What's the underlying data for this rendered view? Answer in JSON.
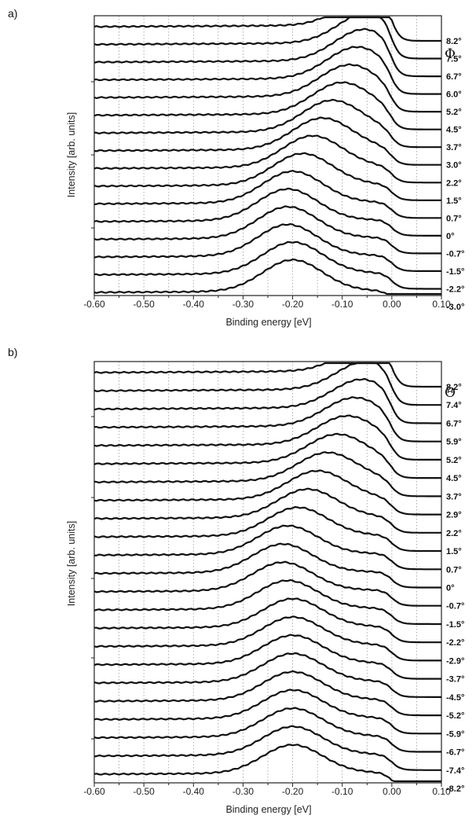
{
  "chart_data": [
    {
      "panel_label": "a)",
      "type": "line",
      "xlabel": "Binding energy [eV]",
      "ylabel": "Intensity [arb. units]",
      "xlim": [
        -0.6,
        0.1
      ],
      "xticks": [
        "-0.60",
        "-0.50",
        "-0.40",
        "-0.30",
        "-0.20",
        "-0.10",
        "0.00",
        "0.10"
      ],
      "grid": "vertical dotted every 0.05 eV",
      "legend_symbol": "Φ",
      "series": [
        {
          "name": "8.2°",
          "peak_x": -0.04
        },
        {
          "name": "7.5°",
          "peak_x": -0.045
        },
        {
          "name": "6.7°",
          "peak_x": -0.055
        },
        {
          "name": "6.0°",
          "peak_x": -0.07
        },
        {
          "name": "5.2°",
          "peak_x": -0.085
        },
        {
          "name": "4.5°",
          "peak_x": -0.1
        },
        {
          "name": "3.7°",
          "peak_x": -0.12
        },
        {
          "name": "3.0°",
          "peak_x": -0.14
        },
        {
          "name": "2.2°",
          "peak_x": -0.16
        },
        {
          "name": "1.5°",
          "peak_x": -0.18
        },
        {
          "name": "0.7°",
          "peak_x": -0.2
        },
        {
          "name": "0°",
          "peak_x": -0.21
        },
        {
          "name": "-0.7°",
          "peak_x": -0.21
        },
        {
          "name": "-1.5°",
          "peak_x": -0.21
        },
        {
          "name": "-2.2°",
          "peak_x": -0.2
        },
        {
          "name": "-3.0°",
          "peak_x": -0.2
        }
      ]
    },
    {
      "panel_label": "b)",
      "type": "line",
      "xlabel": "Binding energy [eV]",
      "ylabel": "Intensity [arb. units]",
      "xlim": [
        -0.6,
        0.1
      ],
      "xticks": [
        "-0.60",
        "-0.50",
        "-0.40",
        "-0.30",
        "-0.20",
        "-0.10",
        "0.00",
        "0.10"
      ],
      "grid": "vertical dotted every 0.05 eV",
      "legend_symbol": "Θ",
      "series": [
        {
          "name": "8.2°",
          "peak_x": -0.04
        },
        {
          "name": "7.4°",
          "peak_x": -0.05
        },
        {
          "name": "6.7°",
          "peak_x": -0.06
        },
        {
          "name": "5.9°",
          "peak_x": -0.075
        },
        {
          "name": "5.2°",
          "peak_x": -0.09
        },
        {
          "name": "4.5°",
          "peak_x": -0.11
        },
        {
          "name": "3.7°",
          "peak_x": -0.13
        },
        {
          "name": "2.9°",
          "peak_x": -0.15
        },
        {
          "name": "2.2°",
          "peak_x": -0.17
        },
        {
          "name": "1.5°",
          "peak_x": -0.19
        },
        {
          "name": "0.7°",
          "peak_x": -0.21
        },
        {
          "name": "0°",
          "peak_x": -0.22
        },
        {
          "name": "-0.7°",
          "peak_x": -0.22
        },
        {
          "name": "-1.5°",
          "peak_x": -0.21
        },
        {
          "name": "-2.2°",
          "peak_x": -0.2
        },
        {
          "name": "-2.9°",
          "peak_x": -0.2
        },
        {
          "name": "-3.7°",
          "peak_x": -0.2
        },
        {
          "name": "-4.5°",
          "peak_x": -0.2
        },
        {
          "name": "-5.2°",
          "peak_x": -0.2
        },
        {
          "name": "-5.9°",
          "peak_x": -0.2
        },
        {
          "name": "-6.7°",
          "peak_x": -0.2
        },
        {
          "name": "-7.4°",
          "peak_x": -0.2
        },
        {
          "name": "-8.2°",
          "peak_x": -0.2
        }
      ]
    }
  ]
}
